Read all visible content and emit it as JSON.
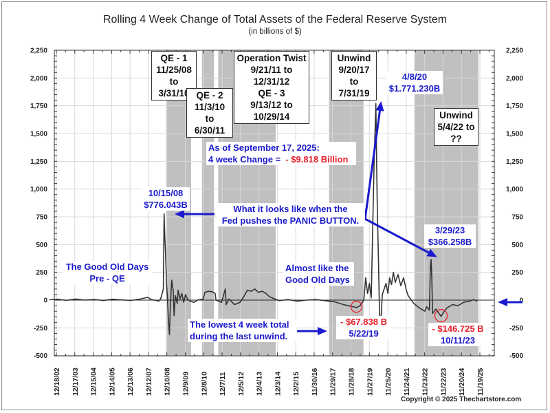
{
  "chart_data": {
    "type": "line",
    "title": "Rolling 4 Week Change of Total Assets of the Federal Reserve System",
    "subtitle": "(in billions of $)",
    "xlabel": "",
    "ylabel": "",
    "ylim": [
      -500,
      2250
    ],
    "y_ticks": [
      2250,
      2000,
      1750,
      1500,
      1250,
      1000,
      750,
      500,
      250,
      0,
      -250,
      -500
    ],
    "y_tick_labels": [
      "2,250",
      "2,000",
      "1,750",
      "1,500",
      "1,250",
      "1,000",
      "750",
      "500",
      "250",
      "0",
      "-250",
      "-500"
    ],
    "x_tick_labels": [
      "12/18/02",
      "12/17/03",
      "12/15/04",
      "12/14/05",
      "12/13/06",
      "12/12/07",
      "12/10/08",
      "12/9/09",
      "12/8/10",
      "12/7/11",
      "12/5/12",
      "12/4/13",
      "12/3/14",
      "12/2/15",
      "11/30/16",
      "11/29/17",
      "11/28/18",
      "11/27/19",
      "11/25/20",
      "11/24/21",
      "11/23/22",
      "11/22/23",
      "11/20/24",
      "11/19/25"
    ],
    "x_range_years": [
      2002.3,
      2026.2
    ],
    "grid": true,
    "series": [
      {
        "name": "Rolling 4 Week Change",
        "points": [
          [
            2002.6,
            3
          ],
          [
            2003.0,
            8
          ],
          [
            2003.5,
            -2
          ],
          [
            2004.0,
            10
          ],
          [
            2004.5,
            0
          ],
          [
            2005.0,
            6
          ],
          [
            2005.5,
            -4
          ],
          [
            2006.0,
            8
          ],
          [
            2006.5,
            2
          ],
          [
            2007.0,
            -3
          ],
          [
            2007.5,
            10
          ],
          [
            2007.9,
            25
          ],
          [
            2008.1,
            5
          ],
          [
            2008.5,
            -8
          ],
          [
            2008.6,
            10
          ],
          [
            2008.75,
            100
          ],
          [
            2008.79,
            776.043
          ],
          [
            2008.83,
            560
          ],
          [
            2008.87,
            420
          ],
          [
            2008.92,
            150
          ],
          [
            2008.97,
            30
          ],
          [
            2009.03,
            -200
          ],
          [
            2009.08,
            -310
          ],
          [
            2009.13,
            -50
          ],
          [
            2009.2,
            180
          ],
          [
            2009.28,
            90
          ],
          [
            2009.33,
            -140
          ],
          [
            2009.4,
            40
          ],
          [
            2009.5,
            -30
          ],
          [
            2009.55,
            90
          ],
          [
            2009.65,
            10
          ],
          [
            2009.75,
            60
          ],
          [
            2009.85,
            -20
          ],
          [
            2009.95,
            50
          ],
          [
            2010.05,
            10
          ],
          [
            2010.2,
            -10
          ],
          [
            2010.4,
            -20
          ],
          [
            2010.6,
            0
          ],
          [
            2010.9,
            10
          ],
          [
            2011.0,
            70
          ],
          [
            2011.2,
            80
          ],
          [
            2011.4,
            75
          ],
          [
            2011.55,
            60
          ],
          [
            2011.6,
            0
          ],
          [
            2011.9,
            -20
          ],
          [
            2012.1,
            100
          ],
          [
            2012.15,
            -40
          ],
          [
            2012.3,
            10
          ],
          [
            2012.6,
            -40
          ],
          [
            2012.9,
            -20
          ],
          [
            2013.1,
            30
          ],
          [
            2013.3,
            90
          ],
          [
            2013.5,
            80
          ],
          [
            2013.7,
            100
          ],
          [
            2013.9,
            70
          ],
          [
            2014.1,
            80
          ],
          [
            2014.3,
            60
          ],
          [
            2014.5,
            30
          ],
          [
            2014.8,
            10
          ],
          [
            2015.0,
            -5
          ],
          [
            2015.5,
            5
          ],
          [
            2016.0,
            -10
          ],
          [
            2016.5,
            0
          ],
          [
            2017.0,
            5
          ],
          [
            2017.5,
            -5
          ],
          [
            2018.0,
            -15
          ],
          [
            2018.5,
            -40
          ],
          [
            2018.9,
            -55
          ],
          [
            2019.2,
            -67.838
          ],
          [
            2019.4,
            -50
          ],
          [
            2019.6,
            0
          ],
          [
            2019.7,
            200
          ],
          [
            2019.8,
            60
          ],
          [
            2019.9,
            150
          ],
          [
            2020.0,
            20
          ],
          [
            2020.15,
            1200
          ],
          [
            2020.25,
            1771.23
          ],
          [
            2020.32,
            900
          ],
          [
            2020.4,
            300
          ],
          [
            2020.45,
            -150
          ],
          [
            2020.5,
            -260
          ],
          [
            2020.6,
            50
          ],
          [
            2020.8,
            150
          ],
          [
            2020.9,
            60
          ],
          [
            2021.0,
            200
          ],
          [
            2021.1,
            140
          ],
          [
            2021.2,
            250
          ],
          [
            2021.3,
            160
          ],
          [
            2021.45,
            230
          ],
          [
            2021.6,
            130
          ],
          [
            2021.75,
            200
          ],
          [
            2021.9,
            90
          ],
          [
            2022.0,
            40
          ],
          [
            2022.3,
            -30
          ],
          [
            2022.6,
            -70
          ],
          [
            2022.9,
            -100
          ],
          [
            2023.0,
            -60
          ],
          [
            2023.15,
            -90
          ],
          [
            2023.2,
            300
          ],
          [
            2023.24,
            366.258
          ],
          [
            2023.28,
            200
          ],
          [
            2023.32,
            -120
          ],
          [
            2023.5,
            -80
          ],
          [
            2023.78,
            -146.725
          ],
          [
            2023.95,
            -100
          ],
          [
            2024.1,
            -70
          ],
          [
            2024.4,
            -40
          ],
          [
            2024.7,
            -50
          ],
          [
            2025.0,
            -20
          ],
          [
            2025.3,
            -10
          ],
          [
            2025.55,
            5
          ],
          [
            2025.72,
            -9.818
          ]
        ]
      }
    ],
    "shaded_periods": [
      {
        "label": "QE - 1",
        "start": "11/25/08",
        "end": "3/31/10",
        "start_year": 2008.9,
        "end_year": 2010.25
      },
      {
        "label": "QE - 2",
        "start": "11/3/10",
        "end": "6/30/11",
        "start_year": 2010.84,
        "end_year": 2011.49
      },
      {
        "label": "Operation Twist / QE - 3",
        "start": "9/21/11",
        "end": "10/29/14",
        "start_year": 2011.72,
        "end_year": 2014.83
      },
      {
        "label": "Unwind",
        "start": "9/20/17",
        "end": "7/31/19",
        "start_year": 2017.72,
        "end_year": 2019.58
      },
      {
        "label": "Unwind",
        "start": "5/4/22",
        "end": "??",
        "start_year": 2022.34,
        "end_year": 2025.8
      }
    ],
    "annotations": {
      "qe1": [
        "QE - 1",
        "11/25/08 to",
        "3/31/10"
      ],
      "qe2": [
        "QE - 2",
        "11/3/10 to",
        "6/30/11"
      ],
      "twist": [
        "Operation Twist",
        "9/21/11 to",
        "12/31/12",
        "QE - 3",
        "9/13/12 to",
        "10/29/14"
      ],
      "unwind1": [
        "Unwind",
        "9/20/17 to",
        "7/31/19"
      ],
      "unwind2": [
        "Unwind",
        "5/4/22 to",
        "??"
      ],
      "peak2020": [
        "4/8/20",
        "$1.771.230B"
      ],
      "asof_line1": "As of September 17, 2025:",
      "asof_line2_prefix": "4 week Change =",
      "asof_value": "- $9.818 Billion",
      "peak2008": [
        "10/15/08",
        "$776.043B"
      ],
      "panic": [
        "What it looks like when the",
        "Fed pushes the PANIC BUTTON."
      ],
      "peak2023": [
        "3/29/23",
        "$366.258B"
      ],
      "good_old_days": [
        "The Good Old Days",
        "Pre - QE"
      ],
      "almost": [
        "Almost like the",
        "Good Old Days"
      ],
      "lowest": [
        "The lowest 4 week total",
        "during the last unwind."
      ],
      "low2019_value": "- $67.838 B",
      "low2019_date": "5/22/19",
      "low2023_value": "- $146.725 B",
      "low2023_date": "10/11/23"
    },
    "copyright": "Copyright © 2025 Thechartstore.com",
    "colors": {
      "line": "#333333",
      "shade": "#c0c0c0",
      "annotation": "#1a1acc",
      "negative": "#e8202a",
      "grid": "#d8d8d8"
    }
  }
}
